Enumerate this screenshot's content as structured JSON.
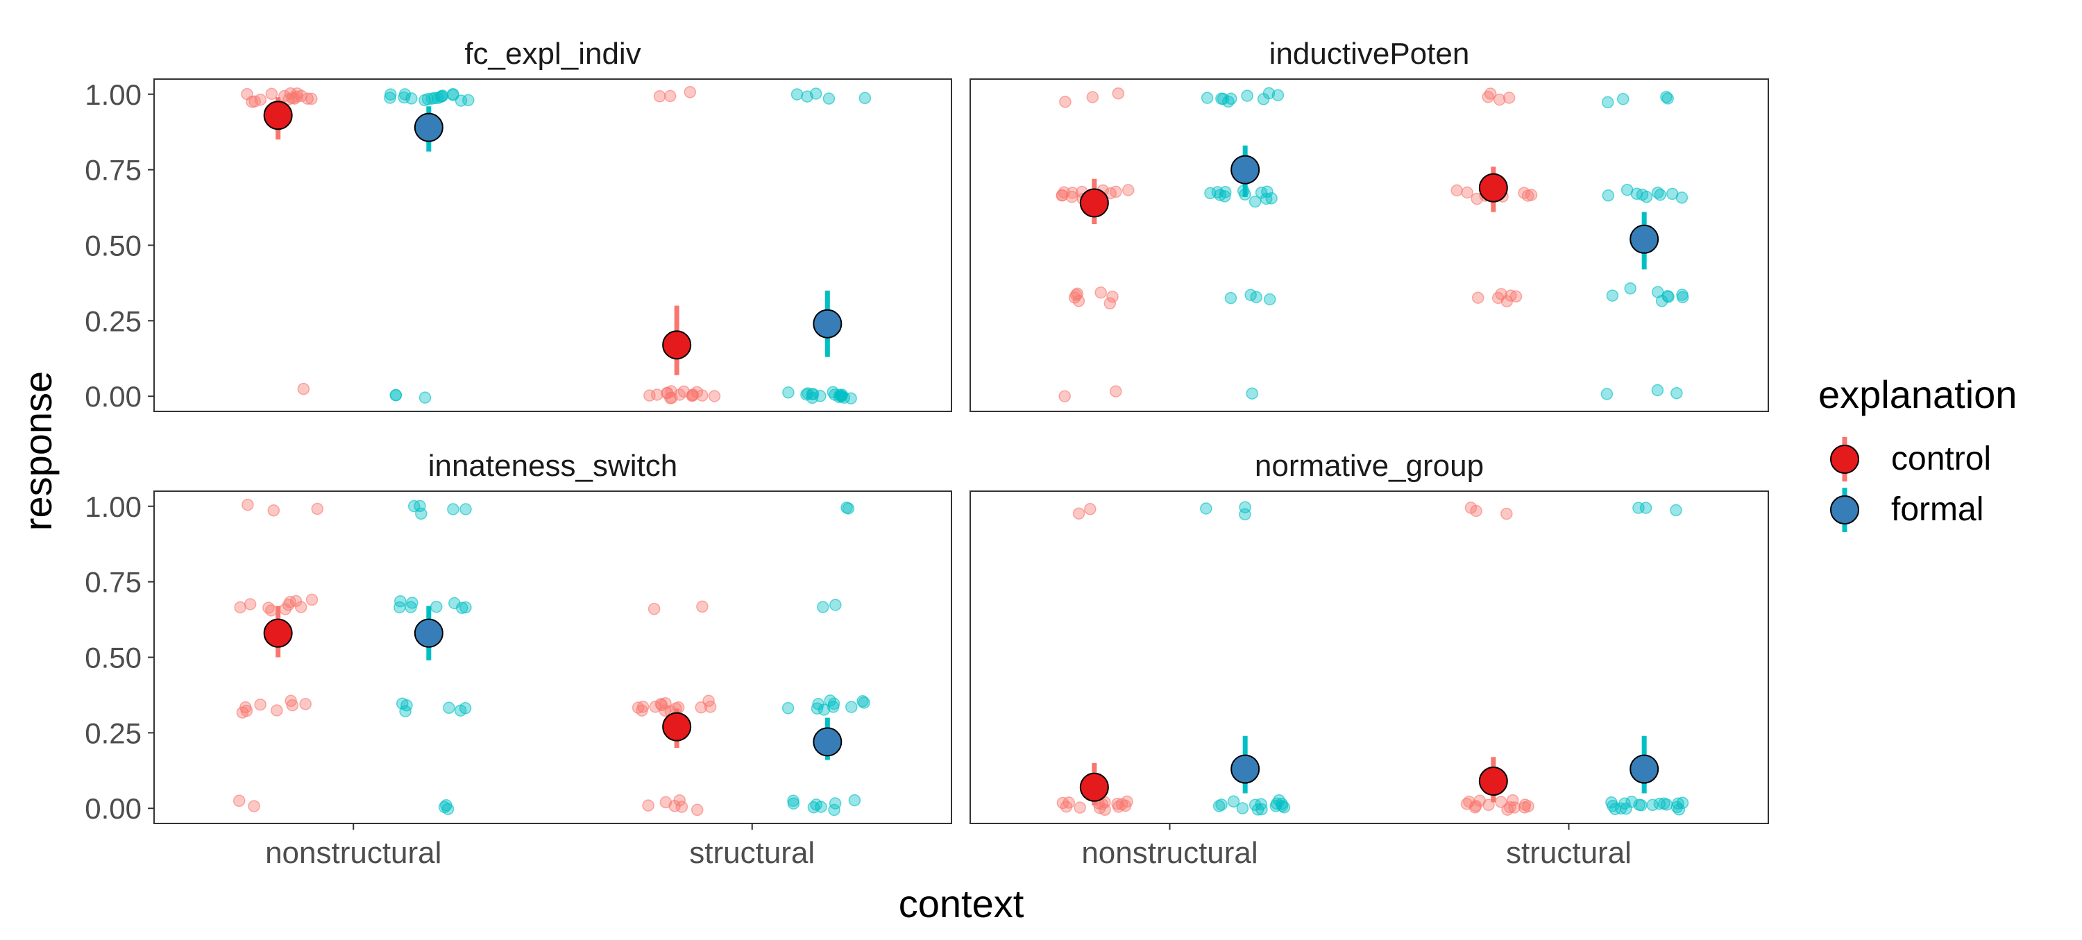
{
  "chart_data": {
    "type": "scatter",
    "facet_layout": "2x2 grid",
    "xlabel": "context",
    "ylabel": "response",
    "categories": [
      "nonstructural",
      "structural"
    ],
    "yticks": [
      0.0,
      0.25,
      0.5,
      0.75,
      1.0
    ],
    "ytick_labels": [
      "0.00",
      "0.25",
      "0.50",
      "0.75",
      "1.00"
    ],
    "ylim": [
      -0.05,
      1.05
    ],
    "grid": false,
    "legend": {
      "title": "explanation",
      "position": "right",
      "entries": [
        "control",
        "formal"
      ]
    },
    "series_colors": {
      "control": {
        "point": "#F8766D",
        "mean": "#E41A1C",
        "bar": "#F8766D"
      },
      "formal": {
        "point": "#00BFC4",
        "mean": "#377EB8",
        "bar": "#00BFC4"
      }
    },
    "panels": [
      {
        "title": "fc_expl_indiv",
        "series": [
          {
            "name": "control",
            "summary": [
              {
                "x": "nonstructural",
                "mean": 0.93,
                "ci": [
                  0.85,
                  0.99
                ]
              },
              {
                "x": "structural",
                "mean": 0.17,
                "ci": [
                  0.07,
                  0.3
                ]
              }
            ],
            "raw": [
              {
                "x": "nonstructural",
                "values": [
                  1.0,
                  0.99,
                  0.99,
                  0.98,
                  0.99,
                  1.0,
                  0.99,
                  0.99,
                  0.98,
                  0.99,
                  1.0,
                  0.99,
                  0.98,
                  0.99,
                  1.0,
                  0.02
                ]
              },
              {
                "x": "structural",
                "values": [
                  0.0,
                  0.01,
                  0.0,
                  0.01,
                  0.0,
                  0.0,
                  0.01,
                  0.0,
                  0.01,
                  0.0,
                  0.0,
                  0.01,
                  0.0,
                  0.01,
                  0.0,
                  1.0,
                  0.99,
                  0.99
                ]
              }
            ]
          },
          {
            "name": "formal",
            "summary": [
              {
                "x": "nonstructural",
                "mean": 0.89,
                "ci": [
                  0.81,
                  0.96
                ]
              },
              {
                "x": "structural",
                "mean": 0.24,
                "ci": [
                  0.13,
                  0.35
                ]
              }
            ],
            "raw": [
              {
                "x": "nonstructural",
                "values": [
                  1.0,
                  0.99,
                  0.99,
                  1.0,
                  0.98,
                  0.99,
                  0.99,
                  1.0,
                  0.98,
                  0.99,
                  0.99,
                  1.0,
                  0.99,
                  0.98,
                  0.99,
                  1.0,
                  0.99,
                  0.01,
                  0.0,
                  0.0
                ]
              },
              {
                "x": "structural",
                "values": [
                  0.0,
                  0.01,
                  0.0,
                  0.01,
                  0.0,
                  0.0,
                  0.01,
                  0.0,
                  0.01,
                  0.0,
                  0.0,
                  0.01,
                  0.0,
                  0.01,
                  0.0,
                  0.01,
                  1.0,
                  0.99,
                  1.0,
                  0.99,
                  0.99
                ]
              }
            ]
          }
        ]
      },
      {
        "title": "inductivePoten",
        "series": [
          {
            "name": "control",
            "summary": [
              {
                "x": "nonstructural",
                "mean": 0.64,
                "ci": [
                  0.57,
                  0.72
                ]
              },
              {
                "x": "structural",
                "mean": 0.69,
                "ci": [
                  0.61,
                  0.76
                ]
              }
            ],
            "raw": [
              {
                "x": "nonstructural",
                "values": [
                  1.0,
                  0.99,
                  0.98,
                  0.67,
                  0.68,
                  0.66,
                  0.67,
                  0.68,
                  0.67,
                  0.66,
                  0.68,
                  0.67,
                  0.66,
                  0.67,
                  0.35,
                  0.33,
                  0.32,
                  0.34,
                  0.33,
                  0.31,
                  0.33,
                  0.01,
                  0.0
                ]
              },
              {
                "x": "structural",
                "values": [
                  1.0,
                  0.99,
                  0.98,
                  0.99,
                  0.68,
                  0.67,
                  0.66,
                  0.67,
                  0.68,
                  0.67,
                  0.66,
                  0.67,
                  0.68,
                  0.66,
                  0.34,
                  0.33,
                  0.32,
                  0.33,
                  0.34,
                  0.32
                ]
              }
            ]
          },
          {
            "name": "formal",
            "summary": [
              {
                "x": "nonstructural",
                "mean": 0.75,
                "ci": [
                  0.66,
                  0.83
                ]
              },
              {
                "x": "structural",
                "mean": 0.52,
                "ci": [
                  0.42,
                  0.61
                ]
              }
            ],
            "raw": [
              {
                "x": "nonstructural",
                "values": [
                  1.0,
                  0.99,
                  0.98,
                  0.99,
                  1.0,
                  0.98,
                  0.99,
                  1.0,
                  0.99,
                  0.68,
                  0.67,
                  0.66,
                  0.65,
                  0.67,
                  0.66,
                  0.68,
                  0.67,
                  0.65,
                  0.66,
                  0.68,
                  0.67,
                  0.33,
                  0.32,
                  0.33,
                  0.32,
                  0.01
                ]
              },
              {
                "x": "structural",
                "values": [
                  0.99,
                  0.98,
                  0.99,
                  0.98,
                  0.68,
                  0.67,
                  0.66,
                  0.67,
                  0.66,
                  0.67,
                  0.68,
                  0.66,
                  0.67,
                  0.35,
                  0.34,
                  0.33,
                  0.34,
                  0.32,
                  0.33,
                  0.34,
                  0.33,
                  0.02,
                  0.01,
                  0.01
                ]
              }
            ]
          }
        ]
      },
      {
        "title": "innateness_switch",
        "series": [
          {
            "name": "control",
            "summary": [
              {
                "x": "nonstructural",
                "mean": 0.58,
                "ci": [
                  0.5,
                  0.67
                ]
              },
              {
                "x": "structural",
                "mean": 0.27,
                "ci": [
                  0.2,
                  0.33
                ]
              }
            ],
            "raw": [
              {
                "x": "nonstructural",
                "values": [
                  1.0,
                  0.99,
                  0.98,
                  0.69,
                  0.68,
                  0.67,
                  0.66,
                  0.68,
                  0.67,
                  0.66,
                  0.68,
                  0.67,
                  0.66,
                  0.35,
                  0.34,
                  0.33,
                  0.32,
                  0.34,
                  0.33,
                  0.32,
                  0.34,
                  0.02,
                  0.01
                ]
              },
              {
                "x": "structural",
                "values": [
                  0.67,
                  0.66,
                  0.34,
                  0.33,
                  0.34,
                  0.32,
                  0.33,
                  0.35,
                  0.34,
                  0.33,
                  0.32,
                  0.34,
                  0.33,
                  0.34,
                  0.35,
                  0.33,
                  0.01,
                  0.02,
                  0.01,
                  0.0,
                  0.02,
                  0.01
                ]
              }
            ]
          },
          {
            "name": "formal",
            "summary": [
              {
                "x": "nonstructural",
                "mean": 0.58,
                "ci": [
                  0.49,
                  0.67
                ]
              },
              {
                "x": "structural",
                "mean": 0.22,
                "ci": [
                  0.16,
                  0.3
                ]
              }
            ],
            "raw": [
              {
                "x": "nonstructural",
                "values": [
                  1.0,
                  0.99,
                  0.98,
                  0.99,
                  1.0,
                  0.68,
                  0.67,
                  0.66,
                  0.67,
                  0.68,
                  0.67,
                  0.66,
                  0.69,
                  0.34,
                  0.33,
                  0.32,
                  0.33,
                  0.34,
                  0.32,
                  0.01,
                  0.0,
                  0.01
                ]
              },
              {
                "x": "structural",
                "values": [
                  0.99,
                  0.99,
                  0.67,
                  0.66,
                  0.35,
                  0.34,
                  0.33,
                  0.34,
                  0.35,
                  0.33,
                  0.34,
                  0.33,
                  0.34,
                  0.35,
                  0.02,
                  0.01,
                  0.01,
                  0.02,
                  0.01,
                  0.0,
                  0.01,
                  0.02
                ]
              }
            ]
          }
        ]
      },
      {
        "title": "normative_group",
        "series": [
          {
            "name": "control",
            "summary": [
              {
                "x": "nonstructural",
                "mean": 0.07,
                "ci": [
                  0.01,
                  0.15
                ]
              },
              {
                "x": "structural",
                "mean": 0.09,
                "ci": [
                  0.02,
                  0.17
                ]
              }
            ],
            "raw": [
              {
                "x": "nonstructural",
                "values": [
                  0.99,
                  0.98,
                  0.02,
                  0.01,
                  0.02,
                  0.01,
                  0.0,
                  0.01,
                  0.02,
                  0.01,
                  0.0,
                  0.01,
                  0.02,
                  0.01,
                  0.0,
                  0.01
                ]
              },
              {
                "x": "structural",
                "values": [
                  1.0,
                  0.99,
                  0.98,
                  0.02,
                  0.01,
                  0.0,
                  0.01,
                  0.02,
                  0.01,
                  0.0,
                  0.01,
                  0.02,
                  0.01,
                  0.0,
                  0.01,
                  0.02,
                  0.0
                ]
              }
            ]
          },
          {
            "name": "formal",
            "summary": [
              {
                "x": "nonstructural",
                "mean": 0.13,
                "ci": [
                  0.05,
                  0.24
                ]
              },
              {
                "x": "structural",
                "mean": 0.13,
                "ci": [
                  0.05,
                  0.24
                ]
              }
            ],
            "raw": [
              {
                "x": "nonstructural",
                "values": [
                  1.0,
                  0.99,
                  0.98,
                  0.02,
                  0.01,
                  0.0,
                  0.01,
                  0.02,
                  0.01,
                  0.0,
                  0.01,
                  0.02,
                  0.01,
                  0.0,
                  0.01,
                  0.02,
                  0.01
                ]
              },
              {
                "x": "structural",
                "values": [
                  1.0,
                  0.99,
                  0.99,
                  0.02,
                  0.01,
                  0.0,
                  0.01,
                  0.02,
                  0.01,
                  0.0,
                  0.01,
                  0.02,
                  0.01,
                  0.0,
                  0.01,
                  0.02,
                  0.01,
                  0.0,
                  0.01,
                  0.02
                ]
              }
            ]
          }
        ]
      }
    ]
  }
}
